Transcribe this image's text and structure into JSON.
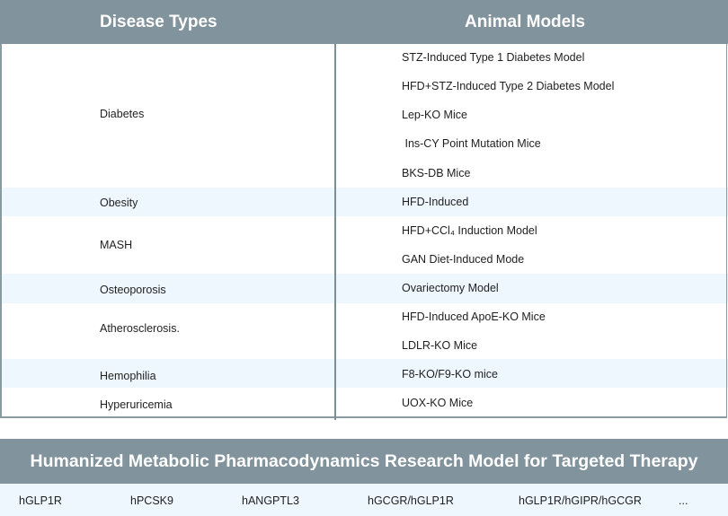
{
  "table": {
    "header_left": "Disease Types",
    "header_right": "Animal Models",
    "rows": [
      {
        "disease": "Diabetes",
        "models": [
          "STZ-Induced Type 1 Diabetes Model",
          "HFD+STZ-Induced Type 2 Diabetes Model",
          "Lep-KO Mice",
          " Ins-CY Point Mutation Mice",
          "BKS-DB Mice"
        ]
      },
      {
        "disease": "Obesity",
        "models": [
          "HFD-Induced"
        ]
      },
      {
        "disease": "MASH",
        "models": [
          "HFD+CCl₄ Induction Model",
          "GAN Diet-Induced Mode"
        ]
      },
      {
        "disease": "Osteoporosis",
        "models": [
          "Ovariectomy Model"
        ]
      },
      {
        "disease": "Atherosclerosis.",
        "models": [
          "HFD-Induced ApoE-KO Mice",
          "LDLR-KO Mice"
        ]
      },
      {
        "disease": "Hemophilia",
        "models": [
          "F8-KO/F9-KO mice"
        ]
      },
      {
        "disease": "Hyperuricemia",
        "models": [
          "UOX-KO Mice"
        ]
      }
    ]
  },
  "humanized": {
    "title": "Humanized Metabolic Pharmacodynamics Research Model for Targeted Therapy",
    "targets": [
      "hGLP1R",
      "hPCSK9",
      "hANGPTL3",
      "hGCGR/hGLP1R",
      "hGLP1R/hGIPR/hGCGR",
      "..."
    ]
  },
  "colors": {
    "header_bg": "#81939c",
    "row_shade": "#eef7fd",
    "border": "#8a9aa1"
  }
}
